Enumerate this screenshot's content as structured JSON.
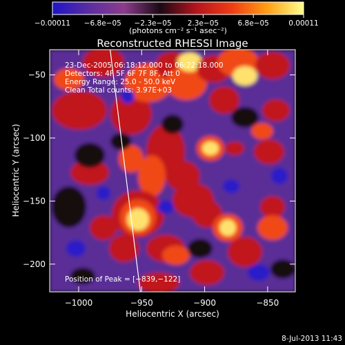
{
  "chart_data": {
    "type": "heatmap",
    "title": "Reconstructed RHESSI Image",
    "xlabel": "Heliocentric X (arcsec)",
    "ylabel": "Heliocentric Y (arcsec)",
    "xlim": [
      -1023,
      -828
    ],
    "ylim": [
      -222,
      -30
    ],
    "xticks": [
      -1000,
      -950,
      -900,
      -850
    ],
    "yticks": [
      -50,
      -100,
      -150,
      -200
    ],
    "xtick_labels": [
      "−1000",
      "−950",
      "−900",
      "−850"
    ],
    "ytick_labels": [
      "−50",
      "−100",
      "−150",
      "−200"
    ],
    "colorbar": {
      "min": -0.00011,
      "max": 0.00011,
      "tick_labels": [
        "−0.00011",
        "−6.8e−05",
        "−2.3e−05",
        "2.3e−05",
        "6.8e−05",
        "0.00011"
      ],
      "unit_label": "(photons cm⁻² s⁻¹ asec⁻²)",
      "colors": [
        "#1e14c8",
        "#5a2da0",
        "#8c3c8c",
        "#1a0a14",
        "#b4141e",
        "#f03c14",
        "#ffa014",
        "#ffff8c"
      ]
    },
    "annotations": [
      "23-Dec-2005 06:18:12.000 to 06:22:18.000",
      "Detectors: 4F 5F 6F 7F 8F, Att 0",
      "Energy Range: 25.0 - 50.0 keV",
      "Clean    Total counts: 3.97E+03"
    ],
    "peak": {
      "label": "Position of Peak = [−839,−122]",
      "x": -839,
      "y": -122
    },
    "limb_line": [
      [
        -975,
        -30
      ],
      [
        -951,
        -222
      ]
    ],
    "grid": false,
    "legend": "none"
  },
  "footer": {
    "timestamp": "8-Jul-2013 11:43"
  }
}
